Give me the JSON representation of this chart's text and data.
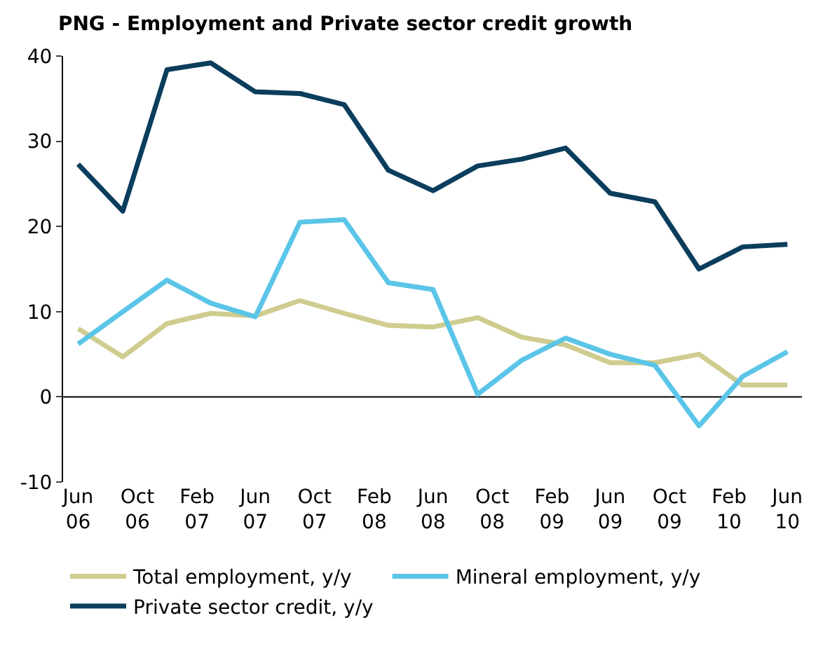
{
  "chart_data": {
    "type": "line",
    "title": "PNG - Employment and Private sector credit growth",
    "x": [
      "2006-06",
      "2006-09",
      "2006-12",
      "2007-03",
      "2007-06",
      "2007-09",
      "2007-12",
      "2008-03",
      "2008-06",
      "2008-09",
      "2008-12",
      "2009-03",
      "2009-06",
      "2009-09",
      "2009-12",
      "2010-03",
      "2010-06"
    ],
    "series": [
      {
        "name": "Total employment, y/y",
        "color": "#cfcc8f",
        "values": [
          8.0,
          4.7,
          8.6,
          9.8,
          9.5,
          11.3,
          9.8,
          8.4,
          8.2,
          9.3,
          7.0,
          6.1,
          4.0,
          4.0,
          5.0,
          1.4,
          1.4
        ]
      },
      {
        "name": "Mineral employment, y/y",
        "color": "#5bc5e8",
        "values": [
          6.2,
          10.0,
          13.7,
          11.0,
          9.4,
          20.5,
          20.8,
          13.4,
          12.6,
          0.3,
          4.3,
          6.9,
          5.0,
          3.7,
          -3.4,
          2.4,
          5.3
        ]
      },
      {
        "name": "Private sector credit, y/y",
        "color": "#0b3d5c",
        "values": [
          27.3,
          21.8,
          38.4,
          39.2,
          35.8,
          35.6,
          34.3,
          26.6,
          24.2,
          27.1,
          27.9,
          29.2,
          23.9,
          22.9,
          15.0,
          17.6,
          17.9
        ]
      }
    ],
    "ylim": [
      -10,
      40
    ],
    "yticks": [
      -10,
      0,
      10,
      20,
      30,
      40
    ],
    "xlim": [
      "2006-05-01",
      "2010-07-01"
    ],
    "xticks": [
      {
        "value": "2006-06",
        "label": "Jun 06"
      },
      {
        "value": "2006-10",
        "label": "Oct 06"
      },
      {
        "value": "2007-02",
        "label": "Feb 07"
      },
      {
        "value": "2007-06",
        "label": "Jun 07"
      },
      {
        "value": "2007-10",
        "label": "Oct 07"
      },
      {
        "value": "2008-02",
        "label": "Feb 08"
      },
      {
        "value": "2008-06",
        "label": "Jun 08"
      },
      {
        "value": "2008-10",
        "label": "Oct 08"
      },
      {
        "value": "2009-02",
        "label": "Feb 09"
      },
      {
        "value": "2009-06",
        "label": "Jun 09"
      },
      {
        "value": "2009-10",
        "label": "Oct 09"
      },
      {
        "value": "2010-02",
        "label": "Feb 10"
      },
      {
        "value": "2010-06",
        "label": "Jun 10"
      }
    ],
    "ref_lines": [
      {
        "axis": "y",
        "value": 0,
        "color": "#000000"
      }
    ],
    "grid": false,
    "legend": "bottom",
    "marker": "none",
    "line_style": "solid"
  }
}
